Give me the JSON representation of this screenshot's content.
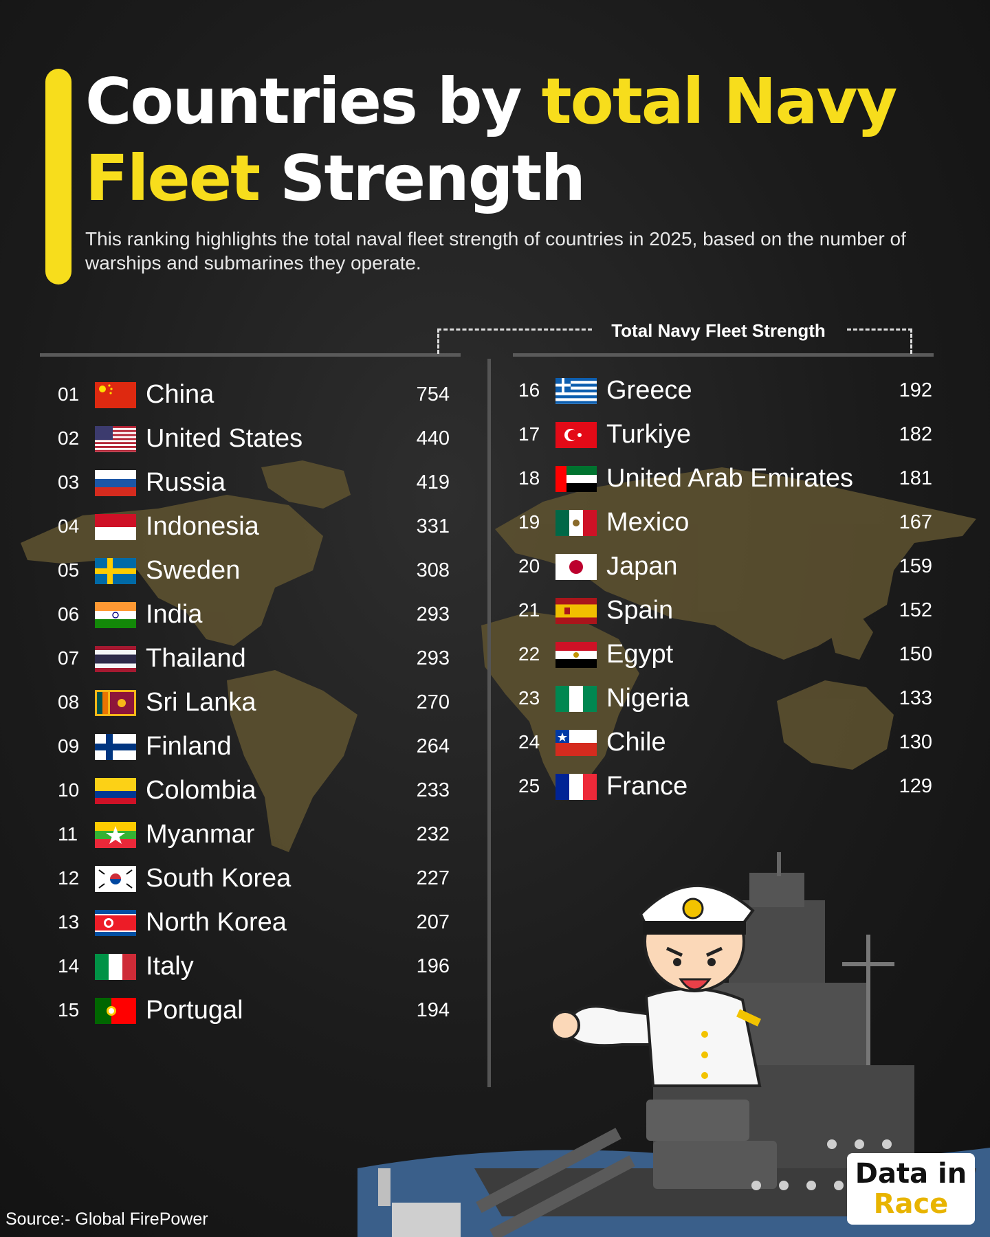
{
  "title": {
    "part1": "Countries by ",
    "part2": "total Navy",
    "part3": "Fleet",
    "part4": " Strength"
  },
  "subtitle": "This ranking highlights the total naval fleet strength of countries in 2025, based on the number of warships and submarines they operate.",
  "header_label": "Total Navy Fleet Strength",
  "source": "Source:-  Global FirePower",
  "logo": {
    "line1": "Data in",
    "line2": "Race"
  },
  "colors": {
    "accent": "#f7dd1c",
    "background": "#1b1b1b",
    "map": "#5f5330"
  },
  "chart_data": {
    "type": "table",
    "title": "Countries by total Navy Fleet Strength",
    "value_label": "Total Navy Fleet Strength",
    "rows": [
      {
        "rank": "01",
        "country": "China",
        "value": 754,
        "flag": "china"
      },
      {
        "rank": "02",
        "country": "United States",
        "value": 440,
        "flag": "usa"
      },
      {
        "rank": "03",
        "country": "Russia",
        "value": 419,
        "flag": "russia"
      },
      {
        "rank": "04",
        "country": "Indonesia",
        "value": 331,
        "flag": "indonesia"
      },
      {
        "rank": "05",
        "country": "Sweden",
        "value": 308,
        "flag": "sweden"
      },
      {
        "rank": "06",
        "country": "India",
        "value": 293,
        "flag": "india"
      },
      {
        "rank": "07",
        "country": "Thailand",
        "value": 293,
        "flag": "thailand"
      },
      {
        "rank": "08",
        "country": "Sri Lanka",
        "value": 270,
        "flag": "srilanka"
      },
      {
        "rank": "09",
        "country": "Finland",
        "value": 264,
        "flag": "finland"
      },
      {
        "rank": "10",
        "country": "Colombia",
        "value": 233,
        "flag": "colombia"
      },
      {
        "rank": "11",
        "country": "Myanmar",
        "value": 232,
        "flag": "myanmar"
      },
      {
        "rank": "12",
        "country": "South Korea",
        "value": 227,
        "flag": "southkorea"
      },
      {
        "rank": "13",
        "country": "North Korea",
        "value": 207,
        "flag": "northkorea"
      },
      {
        "rank": "14",
        "country": "Italy",
        "value": 196,
        "flag": "italy"
      },
      {
        "rank": "15",
        "country": "Portugal",
        "value": 194,
        "flag": "portugal"
      },
      {
        "rank": "16",
        "country": "Greece",
        "value": 192,
        "flag": "greece"
      },
      {
        "rank": "17",
        "country": "Turkiye",
        "value": 182,
        "flag": "turkiye"
      },
      {
        "rank": "18",
        "country": "United Arab Emirates",
        "value": 181,
        "flag": "uae"
      },
      {
        "rank": "19",
        "country": "Mexico",
        "value": 167,
        "flag": "mexico"
      },
      {
        "rank": "20",
        "country": "Japan",
        "value": 159,
        "flag": "japan"
      },
      {
        "rank": "21",
        "country": "Spain",
        "value": 152,
        "flag": "spain"
      },
      {
        "rank": "22",
        "country": "Egypt",
        "value": 150,
        "flag": "egypt"
      },
      {
        "rank": "23",
        "country": "Nigeria",
        "value": 133,
        "flag": "nigeria"
      },
      {
        "rank": "24",
        "country": "Chile",
        "value": 130,
        "flag": "chile"
      },
      {
        "rank": "25",
        "country": "France",
        "value": 129,
        "flag": "france"
      }
    ]
  }
}
